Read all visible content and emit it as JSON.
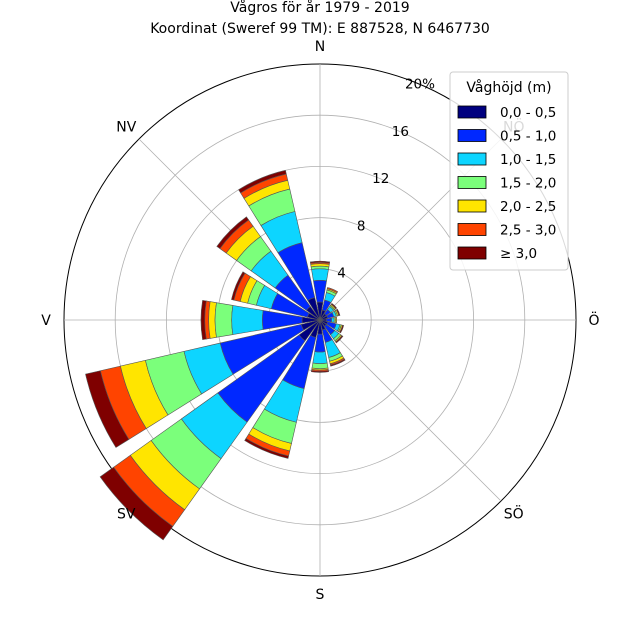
{
  "chart_data": {
    "type": "windrose",
    "title": "Vågros för år 1979 - 2019",
    "subtitle": "Koordinat (Sweref 99 TM): E 887528, N 6467730",
    "direction_labels": [
      {
        "label": "N",
        "angle_deg": 0
      },
      {
        "label": "NÖ",
        "angle_deg": 45
      },
      {
        "label": "Ö",
        "angle_deg": 90
      },
      {
        "label": "SÖ",
        "angle_deg": 135
      },
      {
        "label": "S",
        "angle_deg": 180
      },
      {
        "label": "SV",
        "angle_deg": 225
      },
      {
        "label": "V",
        "angle_deg": 270
      },
      {
        "label": "NV",
        "angle_deg": 315
      }
    ],
    "radial_ticks": [
      4,
      8,
      12,
      16,
      20
    ],
    "radial_tick_labels": [
      "4",
      "8",
      "12",
      "16",
      "20%"
    ],
    "rmax": 20,
    "grid": true,
    "legend": {
      "title": "Våghöjd (m)",
      "placement": "top-right",
      "entries": [
        {
          "label": "0,0 - 0,5",
          "color": "#00007f"
        },
        {
          "label": "0,5 - 1,0",
          "color": "#0028ff"
        },
        {
          "label": "1,0 - 1,5",
          "color": "#0dd5ff"
        },
        {
          "label": "1,5 - 2,0",
          "color": "#7bff7b"
        },
        {
          "label": "2,0 - 2,5",
          "color": "#ffe500"
        },
        {
          "label": "2,5 - 3,0",
          "color": "#ff4400"
        },
        {
          "label": "≥ 3,0",
          "color": "#7f0000"
        }
      ]
    },
    "directions_deg": [
      0,
      22.5,
      45,
      67.5,
      90,
      112.5,
      135,
      157.5,
      180,
      202.5,
      225,
      247.5,
      270,
      292.5,
      315,
      337.5
    ],
    "cumulative_percent": [
      [
        1.4,
        3.1,
        4.0,
        4.2,
        4.4,
        4.5,
        4.6
      ],
      [
        0.8,
        1.6,
        2.2,
        2.4,
        2.5,
        2.6,
        2.6
      ],
      [
        0.6,
        1.0,
        1.3,
        1.4,
        1.5,
        1.5,
        1.6
      ],
      [
        0.6,
        1.1,
        1.3,
        1.4,
        1.5,
        1.5,
        1.6
      ],
      [
        0.5,
        0.9,
        1.1,
        1.2,
        1.3,
        1.3,
        1.3
      ],
      [
        0.6,
        1.3,
        1.6,
        1.7,
        1.8,
        1.8,
        1.9
      ],
      [
        0.6,
        1.4,
        1.8,
        2.0,
        2.1,
        2.1,
        2.2
      ],
      [
        0.8,
        1.8,
        3.0,
        3.3,
        3.5,
        3.6,
        3.7
      ],
      [
        1.1,
        2.5,
        3.4,
        3.8,
        3.9,
        4.0,
        4.1
      ],
      [
        1.4,
        5.5,
        8.2,
        9.9,
        10.5,
        10.9,
        11.1
      ],
      [
        2.0,
        9.8,
        13.3,
        16.2,
        18.2,
        19.8,
        21.1
      ],
      [
        1.5,
        8.0,
        10.9,
        14.0,
        16.0,
        17.6,
        18.8
      ],
      [
        1.4,
        4.5,
        6.9,
        8.2,
        8.7,
        9.0,
        9.3
      ],
      [
        1.0,
        3.9,
        5.1,
        5.8,
        6.4,
        6.9,
        7.1
      ],
      [
        1.3,
        4.3,
        6.6,
        8.0,
        9.0,
        9.6,
        9.9
      ],
      [
        1.8,
        6.2,
        8.7,
        10.5,
        11.2,
        11.7,
        12.0
      ]
    ]
  }
}
